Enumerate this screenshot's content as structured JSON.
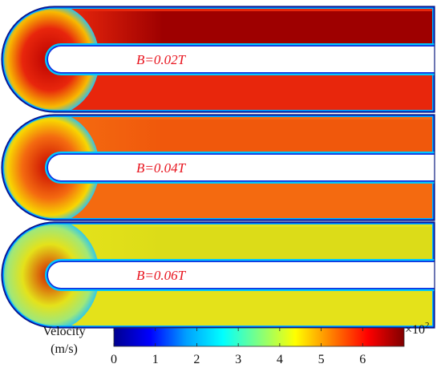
{
  "panels": [
    {
      "label": "B=0.02T",
      "main_color": "#e8260c",
      "top_color": "#9e0000",
      "bend_core": "#b80000",
      "edge_color": "#f9c200"
    },
    {
      "label": "B=0.04T",
      "main_color": "#f46a10",
      "top_color": "#f0580c",
      "bend_core": "#c40000",
      "edge_color": "#f8dc00"
    },
    {
      "label": "B=0.06T",
      "main_color": "#e4e21a",
      "top_color": "#dcdc18",
      "bend_core": "#d21000",
      "edge_color": "#9ee87c"
    }
  ],
  "colorbar": {
    "title_line1": "Velocity",
    "title_line2": "(m/s)",
    "ticks": [
      "0",
      "1",
      "2",
      "3",
      "4",
      "5",
      "6"
    ],
    "vmin": 0,
    "vmax": 7,
    "multiplier_base": "×10",
    "multiplier_exp": "2",
    "colormap": [
      "#00008f",
      "#0000ff",
      "#00a0ff",
      "#00ffff",
      "#80ff80",
      "#ffff00",
      "#ff8000",
      "#ff0000",
      "#800000"
    ]
  }
}
